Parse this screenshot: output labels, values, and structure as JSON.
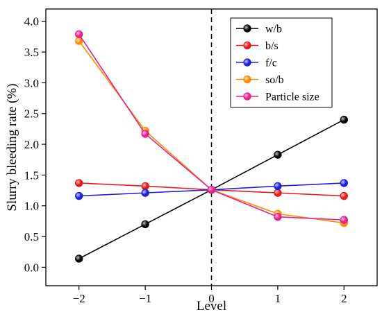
{
  "chart_data": {
    "type": "line",
    "xlabel": "Level",
    "ylabel": "Slurry bleeding rate (%)",
    "x": [
      -2,
      -1,
      0,
      1,
      2
    ],
    "xticks": [
      "−2",
      "−1",
      "0",
      "1",
      "2"
    ],
    "xlim": [
      -2.5,
      2.5
    ],
    "yticks": [
      "0.0",
      "0.5",
      "1.0",
      "1.5",
      "2.0",
      "2.5",
      "3.0",
      "3.5",
      "4.0"
    ],
    "ytick_values": [
      0.0,
      0.5,
      1.0,
      1.5,
      2.0,
      2.5,
      3.0,
      3.5,
      4.0
    ],
    "ylim": [
      -0.3,
      4.2
    ],
    "grid": false,
    "reference_line": {
      "x": 0,
      "style": "dashed"
    },
    "legend_position": "top-right",
    "series": [
      {
        "name": "w/b",
        "color": "#000000",
        "values": [
          0.14,
          0.7,
          1.26,
          1.83,
          2.4
        ]
      },
      {
        "name": "b/s",
        "color": "#e41a1c",
        "values": [
          1.37,
          1.32,
          1.26,
          1.21,
          1.16
        ]
      },
      {
        "name": "f/c",
        "color": "#1f1fe0",
        "values": [
          1.16,
          1.21,
          1.26,
          1.32,
          1.37
        ]
      },
      {
        "name": "so/b",
        "color": "#ff8c00",
        "values": [
          3.68,
          2.22,
          1.26,
          0.87,
          0.72
        ]
      },
      {
        "name": "Particle size",
        "color": "#e8208a",
        "values": [
          3.79,
          2.17,
          1.26,
          0.82,
          0.77
        ]
      }
    ]
  }
}
